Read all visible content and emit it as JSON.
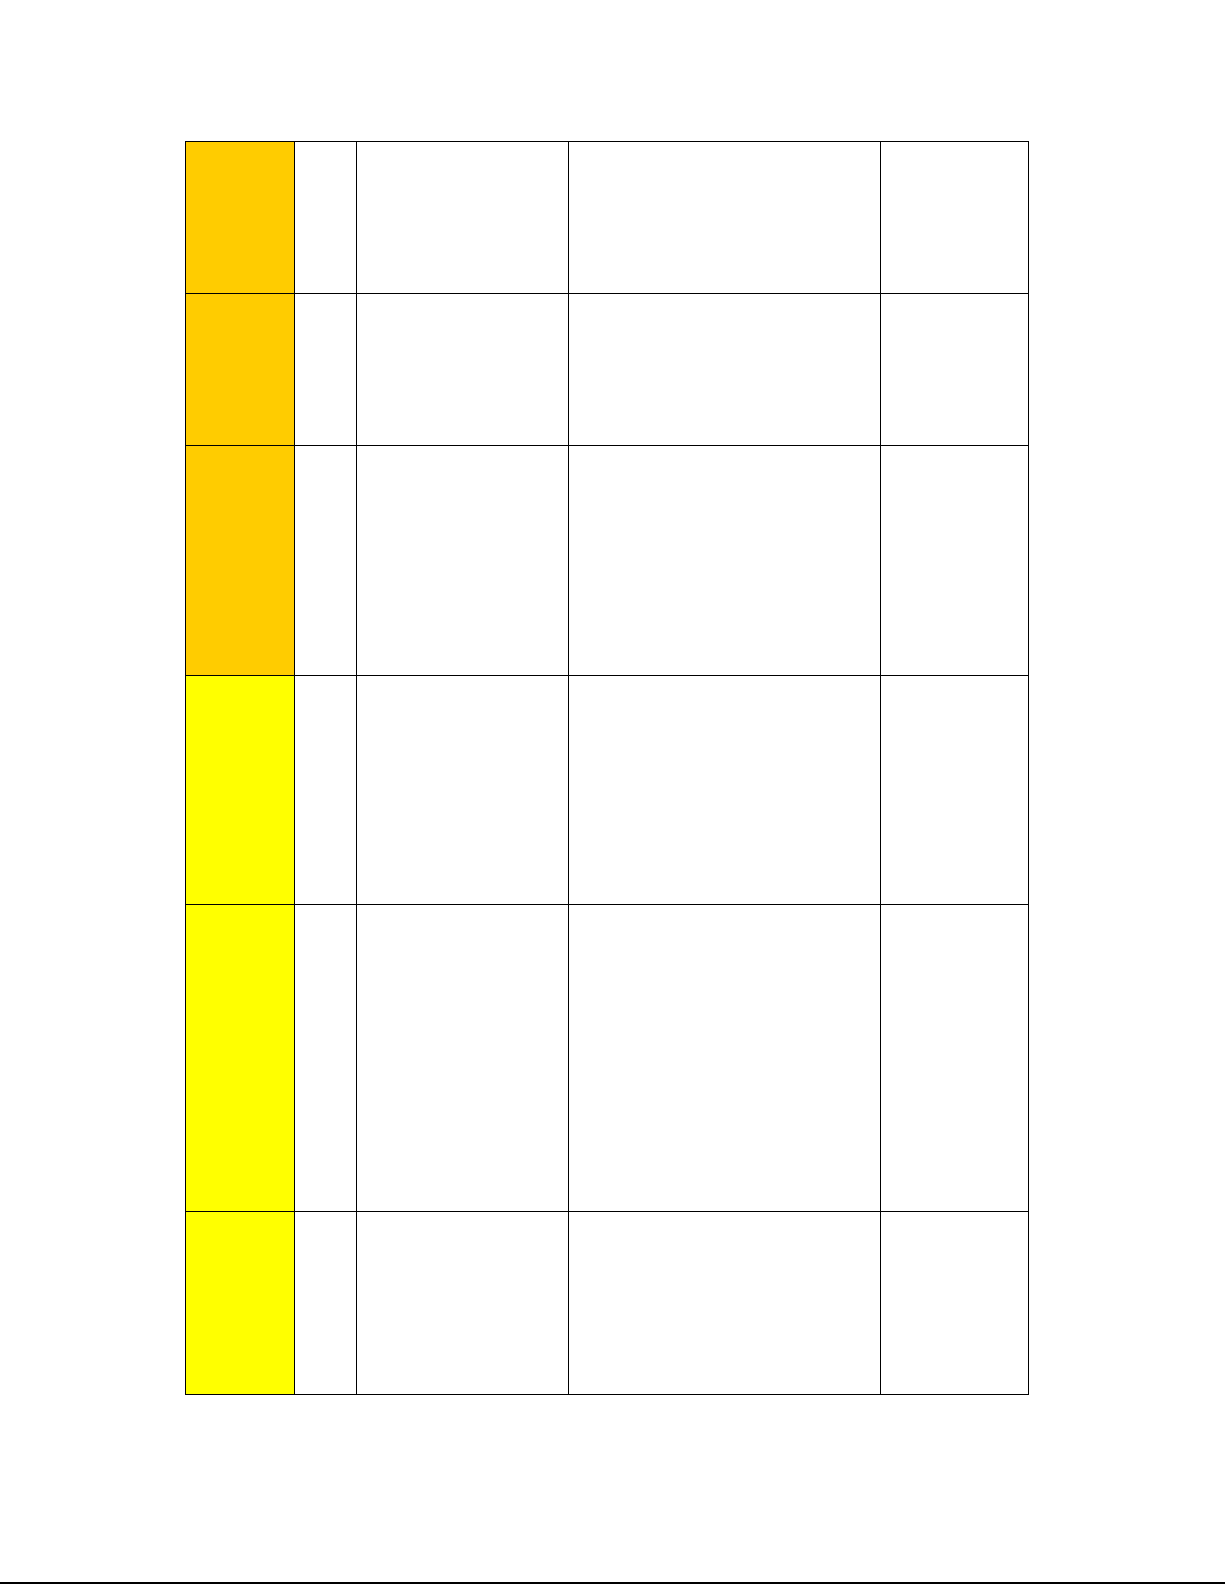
{
  "colors": {
    "orange": "#FFCC00",
    "yellow": "#FFFF00"
  },
  "table": {
    "rows": [
      {
        "color": "orange",
        "cells": [
          "",
          "",
          "",
          ""
        ]
      },
      {
        "color": "orange",
        "cells": [
          "",
          "",
          "",
          ""
        ]
      },
      {
        "color": "orange",
        "cells": [
          "",
          "",
          "",
          ""
        ]
      },
      {
        "color": "yellow",
        "cells": [
          "",
          "",
          "",
          ""
        ]
      },
      {
        "color": "yellow",
        "cells": [
          "",
          "",
          "",
          ""
        ]
      },
      {
        "color": "yellow",
        "cells": [
          "",
          "",
          "",
          ""
        ]
      }
    ]
  }
}
